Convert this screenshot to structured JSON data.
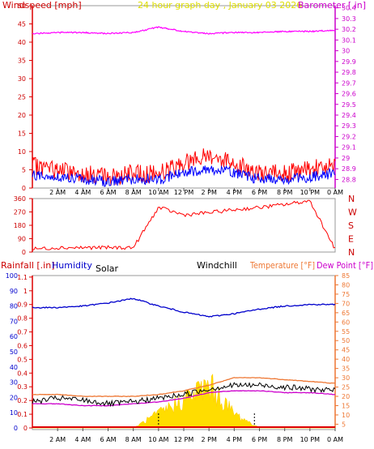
{
  "panel1": {
    "title": "24 hour graph day , January 03 2026",
    "left_label": "Windspeed [mph]",
    "right_label": "Barometer [.in]",
    "left_ticks": [
      "0",
      "5",
      "10",
      "15",
      "20",
      "25",
      "30",
      "35",
      "40",
      "45",
      "50"
    ],
    "right_ticks": [
      "28.8",
      "28.9",
      "29",
      "29.1",
      "29.2",
      "29.3",
      "29.4",
      "29.5",
      "29.6",
      "29.7",
      "29.8",
      "29.9",
      "30",
      "30.1",
      "30.2",
      "30.3",
      "30.4"
    ],
    "x_ticks": [
      "2 AM",
      "4 AM",
      "6 AM",
      "8 AM",
      "10 AM",
      "12 PM",
      "2 PM",
      "4 PM",
      "6 PM",
      "8 PM",
      "10 PM",
      "0 AM"
    ]
  },
  "panel2": {
    "left_ticks": [
      "0",
      "90",
      "180",
      "270",
      "360"
    ],
    "right_labels": [
      "N",
      "W",
      "S",
      "E",
      "N"
    ]
  },
  "panel3": {
    "labels": {
      "rainfall": "Rainfall [.in]",
      "humidity": "Humidity",
      "solar": "Solar",
      "windchill": "Windchill",
      "temperature": "Temperature [°F]",
      "dewpoint": "Dew Point [°F]"
    },
    "humidity_ticks": [
      "0",
      "10",
      "20",
      "30",
      "40",
      "50",
      "60",
      "70",
      "80",
      "90",
      "100"
    ],
    "rain_ticks": [
      "0",
      "0.1",
      "0.2",
      "0.3",
      "0.4",
      "0.5",
      "0.6",
      "0.7",
      "0.8",
      "0.9",
      "1",
      "1.1"
    ],
    "right_ticks": [
      "5",
      "10",
      "15",
      "20",
      "25",
      "30",
      "35",
      "40",
      "45",
      "50",
      "55",
      "60",
      "65",
      "70",
      "75",
      "80",
      "85"
    ],
    "x_ticks": [
      "2 AM",
      "4 AM",
      "6 AM",
      "8 AM",
      "10 AM",
      "12 PM",
      "2 PM",
      "4 PM",
      "6 PM",
      "8 PM",
      "10 PM",
      "0 AM"
    ]
  },
  "colors": {
    "windspeed": "#ff0000",
    "gust": "#0000ff",
    "barometer": "#ff00ff",
    "humidity": "#0000cc",
    "temperature": "#ee7733",
    "dewpoint": "#cc00cc",
    "windchill": "#000000",
    "solar": "#ffdd00",
    "title": "#dddd00",
    "axis": "#dd0000"
  },
  "chart_data": [
    {
      "type": "line",
      "title": "24 hour graph day , January 03 2026",
      "ylabel": "Windspeed [mph]",
      "y2label": "Barometer [.in]",
      "ylim": [
        0,
        50
      ],
      "y2lim": [
        28.72,
        30.42
      ],
      "x_hours": [
        0,
        2,
        4,
        6,
        8,
        10,
        12,
        14,
        16,
        18,
        20,
        22,
        24
      ],
      "series": [
        {
          "name": "Windspeed",
          "values": [
            6,
            5,
            4,
            3,
            4,
            4,
            7,
            9,
            7,
            4,
            4,
            5,
            7
          ]
        },
        {
          "name": "Barometer",
          "values": [
            30.16,
            30.17,
            30.17,
            30.16,
            30.17,
            30.22,
            30.18,
            30.16,
            30.17,
            30.17,
            30.18,
            30.18,
            30.19
          ]
        }
      ]
    },
    {
      "type": "line",
      "ylim": [
        0,
        360
      ],
      "x_hours": [
        0,
        2,
        4,
        6,
        8,
        10,
        12,
        14,
        16,
        18,
        20,
        22,
        24
      ],
      "series": [
        {
          "name": "Wind direction",
          "values": [
            20,
            30,
            30,
            30,
            30,
            300,
            250,
            265,
            285,
            300,
            320,
            345,
            20
          ]
        }
      ]
    },
    {
      "type": "line",
      "ylabel": "Humidity",
      "y2label": "Temperature [°F] Dew Point [°F]",
      "ylim": [
        0,
        100
      ],
      "y2lim": [
        3,
        85
      ],
      "x_hours": [
        0,
        2,
        4,
        6,
        8,
        10,
        12,
        14,
        16,
        18,
        20,
        22,
        24
      ],
      "series": [
        {
          "name": "Humidity",
          "values": [
            79,
            79,
            80,
            82,
            85,
            80,
            76,
            73,
            75,
            78,
            80,
            81,
            81
          ]
        },
        {
          "name": "Temperature",
          "values": [
            21,
            21,
            20,
            20,
            20,
            21,
            23,
            26,
            30,
            30,
            29,
            28,
            27
          ]
        },
        {
          "name": "Dew Point",
          "values": [
            16,
            16,
            15,
            15,
            16,
            17,
            19,
            22,
            23,
            23,
            22,
            22,
            21
          ]
        },
        {
          "name": "Windchill",
          "values": [
            17,
            19,
            18,
            16,
            17,
            19,
            21,
            24,
            26,
            26,
            25,
            24,
            23
          ]
        },
        {
          "name": "Solar",
          "values": [
            0,
            0,
            0,
            0,
            0,
            8,
            16,
            24,
            8,
            0,
            0,
            0,
            0
          ]
        }
      ]
    }
  ]
}
